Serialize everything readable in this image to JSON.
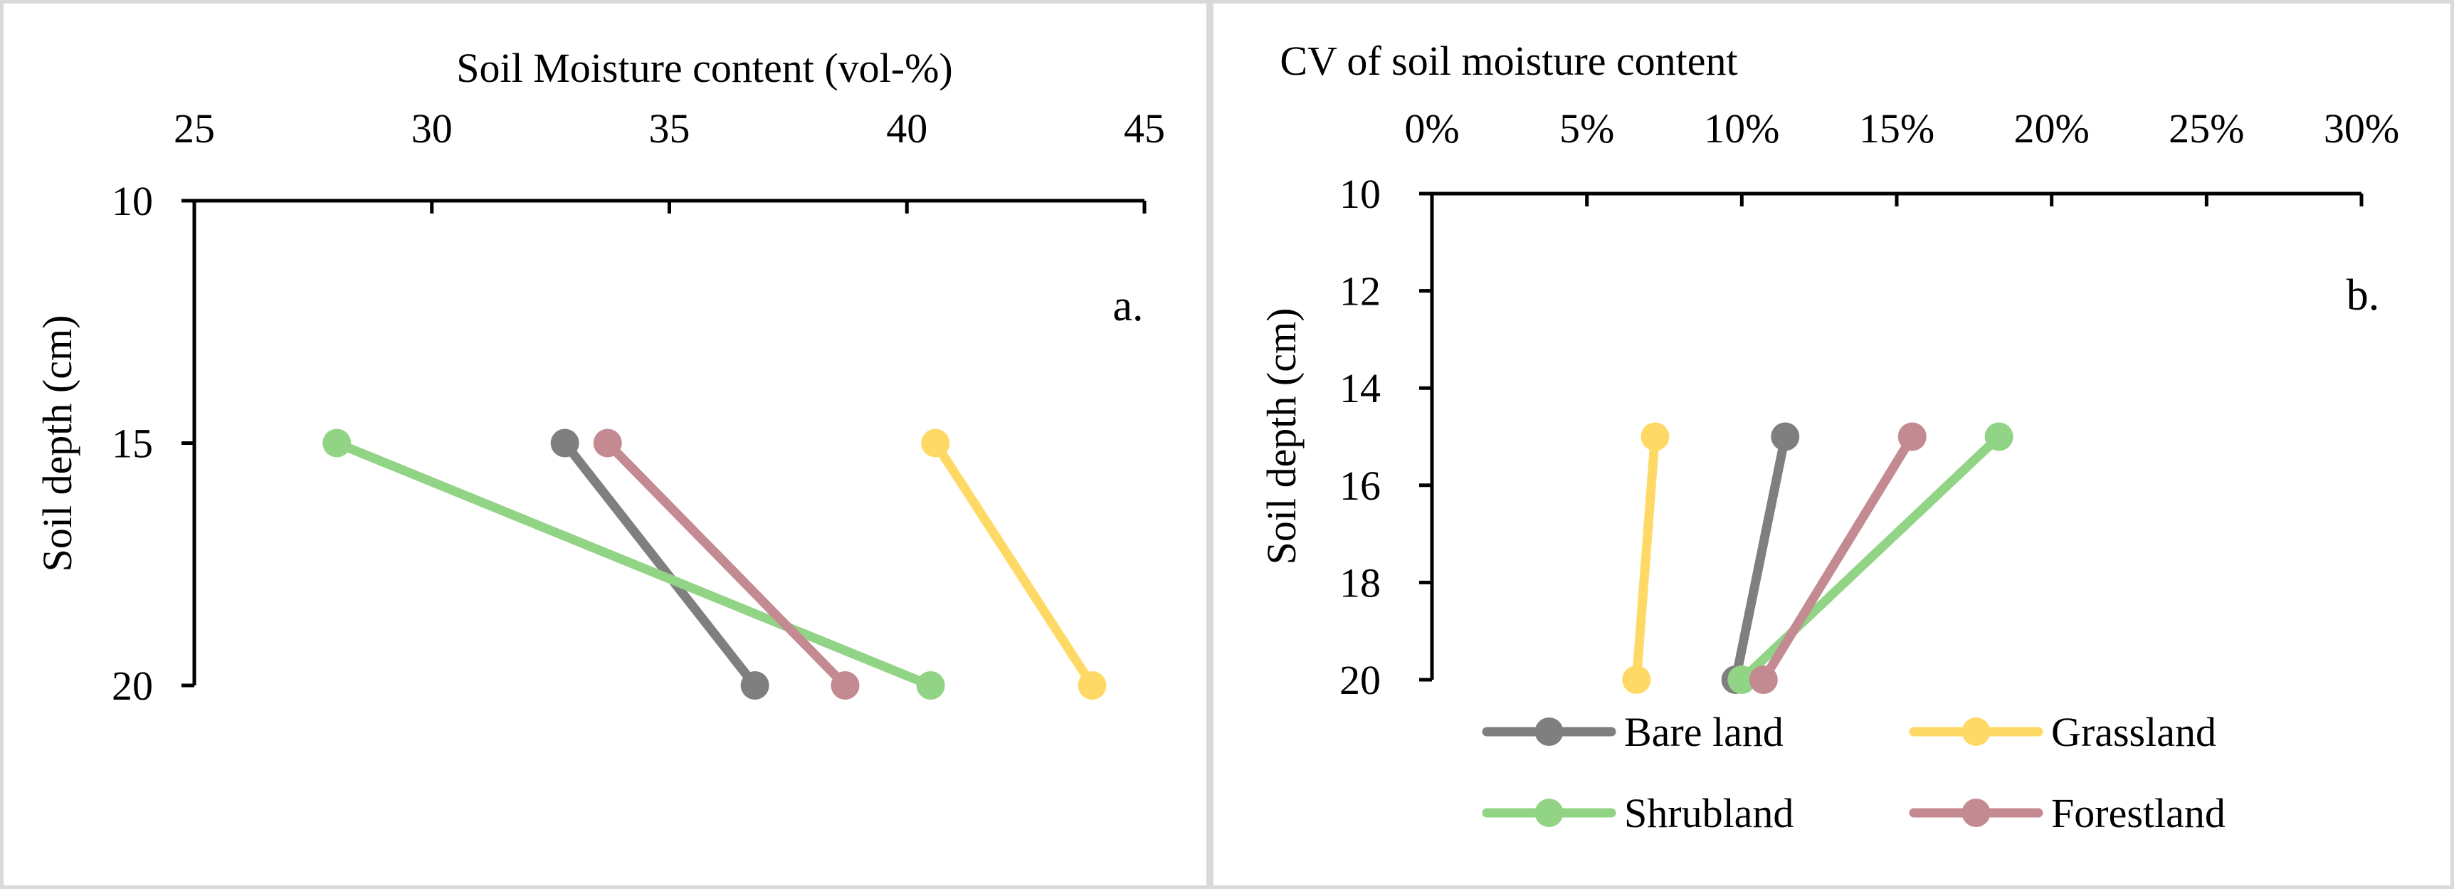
{
  "chart_data": [
    {
      "id": "a",
      "type": "line",
      "title": "Soil Moisture content (vol-%)",
      "panel_label": "a.",
      "xlabel": "Soil Moisture content (vol-%)",
      "ylabel": "Soil depth (cm)",
      "xlim": [
        25,
        45
      ],
      "ylim": [
        10,
        20
      ],
      "xticks": [
        25,
        30,
        35,
        40,
        45
      ],
      "xtick_labels": [
        "25",
        "30",
        "35",
        "40",
        "45"
      ],
      "yticks": [
        10,
        15,
        20
      ],
      "ytick_labels": [
        "10",
        "15",
        "20"
      ],
      "grid": false,
      "legend": false,
      "series": [
        {
          "name": "Bare land",
          "color": "#7f7f7f",
          "points": [
            {
              "x": 32.8,
              "y": 15
            },
            {
              "x": 36.8,
              "y": 20
            }
          ]
        },
        {
          "name": "Grassland",
          "color": "#ffd966",
          "points": [
            {
              "x": 40.6,
              "y": 15
            },
            {
              "x": 43.9,
              "y": 20
            }
          ]
        },
        {
          "name": "Shrubland",
          "color": "#92d485",
          "points": [
            {
              "x": 28.0,
              "y": 15
            },
            {
              "x": 40.5,
              "y": 20
            }
          ]
        },
        {
          "name": "Forestland",
          "color": "#c48a91",
          "points": [
            {
              "x": 33.7,
              "y": 15
            },
            {
              "x": 38.7,
              "y": 20
            }
          ]
        }
      ]
    },
    {
      "id": "b",
      "type": "line",
      "title": "CV of soil moisture content",
      "panel_label": "b.",
      "xlabel": "CV of soil moisture content",
      "ylabel": "Soil depth (cm)",
      "xlim": [
        0,
        30
      ],
      "ylim": [
        10,
        20
      ],
      "xticks": [
        0,
        5,
        10,
        15,
        20,
        25,
        30
      ],
      "xtick_labels": [
        "0%",
        "5%",
        "10%",
        "15%",
        "20%",
        "25%",
        "30%"
      ],
      "yticks": [
        10,
        12,
        14,
        16,
        18,
        20
      ],
      "ytick_labels": [
        "10",
        "12",
        "14",
        "16",
        "18",
        "20"
      ],
      "grid": false,
      "legend": true,
      "legend_position": "bottom",
      "series": [
        {
          "name": "Bare land",
          "color": "#7f7f7f",
          "points": [
            {
              "x": 11.4,
              "y": 15
            },
            {
              "x": 9.8,
              "y": 20
            }
          ]
        },
        {
          "name": "Grassland",
          "color": "#ffd966",
          "points": [
            {
              "x": 7.2,
              "y": 15
            },
            {
              "x": 6.6,
              "y": 20
            }
          ]
        },
        {
          "name": "Shrubland",
          "color": "#92d485",
          "points": [
            {
              "x": 18.3,
              "y": 15
            },
            {
              "x": 10.0,
              "y": 20
            }
          ]
        },
        {
          "name": "Forestland",
          "color": "#c48a91",
          "points": [
            {
              "x": 15.5,
              "y": 15
            },
            {
              "x": 10.7,
              "y": 20
            }
          ]
        }
      ]
    }
  ]
}
